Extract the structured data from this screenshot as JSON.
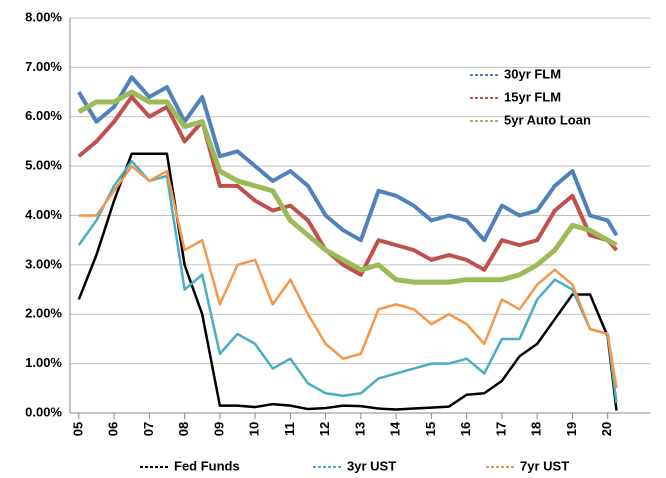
{
  "chart_data": {
    "type": "line",
    "x": [
      2005,
      2005.5,
      2006,
      2006.5,
      2007,
      2007.5,
      2008,
      2008.5,
      2009,
      2009.5,
      2010,
      2010.5,
      2011,
      2011.5,
      2012,
      2012.5,
      2013,
      2013.5,
      2014,
      2014.5,
      2015,
      2015.5,
      2016,
      2016.5,
      2017,
      2017.5,
      2018,
      2018.5,
      2019,
      2019.5,
      2020,
      2020.25
    ],
    "series": [
      {
        "name": "30yr FLM",
        "color": "#4f81bd",
        "values": [
          6.5,
          5.9,
          6.2,
          6.8,
          6.4,
          6.6,
          5.9,
          6.4,
          5.2,
          5.3,
          5.0,
          4.7,
          4.9,
          4.6,
          4.0,
          3.7,
          3.5,
          4.5,
          4.4,
          4.2,
          3.9,
          4.0,
          3.9,
          3.5,
          4.2,
          4.0,
          4.1,
          4.6,
          4.9,
          4.0,
          3.9,
          3.6
        ]
      },
      {
        "name": "15yr FLM",
        "color": "#c0504d",
        "values": [
          5.2,
          5.5,
          5.9,
          6.4,
          6.0,
          6.2,
          5.5,
          5.9,
          4.6,
          4.6,
          4.3,
          4.1,
          4.2,
          3.9,
          3.3,
          3.0,
          2.8,
          3.5,
          3.4,
          3.3,
          3.1,
          3.2,
          3.1,
          2.9,
          3.5,
          3.4,
          3.5,
          4.1,
          4.4,
          3.6,
          3.5,
          3.3
        ]
      },
      {
        "name": "5yr Auto Loan",
        "color": "#9bbb59",
        "values": [
          6.1,
          6.3,
          6.3,
          6.5,
          6.3,
          6.3,
          5.8,
          5.9,
          4.9,
          4.7,
          4.6,
          4.5,
          3.9,
          3.6,
          3.3,
          3.1,
          2.9,
          3.0,
          2.7,
          2.65,
          2.65,
          2.65,
          2.7,
          2.7,
          2.7,
          2.8,
          3.0,
          3.3,
          3.8,
          3.7,
          3.5,
          3.4
        ]
      },
      {
        "name": "Fed Funds",
        "color": "#000000",
        "values": [
          2.3,
          3.2,
          4.3,
          5.25,
          5.25,
          5.25,
          3.0,
          2.0,
          0.15,
          0.15,
          0.12,
          0.18,
          0.15,
          0.08,
          0.1,
          0.15,
          0.14,
          0.09,
          0.07,
          0.09,
          0.11,
          0.13,
          0.37,
          0.4,
          0.65,
          1.15,
          1.4,
          1.9,
          2.4,
          2.4,
          1.55,
          0.05
        ]
      },
      {
        "name": "3yr UST",
        "color": "#4bacc6",
        "values": [
          3.4,
          3.9,
          4.6,
          5.1,
          4.7,
          4.8,
          2.5,
          2.8,
          1.2,
          1.6,
          1.4,
          0.9,
          1.1,
          0.6,
          0.4,
          0.35,
          0.4,
          0.7,
          0.8,
          0.9,
          1.0,
          1.0,
          1.1,
          0.8,
          1.5,
          1.5,
          2.3,
          2.7,
          2.5,
          1.7,
          1.6,
          0.2
        ]
      },
      {
        "name": "7yr UST",
        "color": "#f79646",
        "values": [
          4.0,
          4.0,
          4.5,
          5.0,
          4.7,
          4.9,
          3.3,
          3.5,
          2.2,
          3.0,
          3.1,
          2.2,
          2.7,
          2.0,
          1.4,
          1.1,
          1.2,
          2.1,
          2.2,
          2.1,
          1.8,
          2.0,
          1.8,
          1.4,
          2.3,
          2.1,
          2.6,
          2.9,
          2.6,
          1.7,
          1.6,
          0.5
        ]
      }
    ],
    "xlim": [
      2004.75,
      2021.2
    ],
    "xticks": [
      {
        "value": 2005,
        "label": "05"
      },
      {
        "value": 2006,
        "label": "06"
      },
      {
        "value": 2007,
        "label": "07"
      },
      {
        "value": 2008,
        "label": "08"
      },
      {
        "value": 2009,
        "label": "09"
      },
      {
        "value": 2010,
        "label": "10"
      },
      {
        "value": 2011,
        "label": "11"
      },
      {
        "value": 2012,
        "label": "12"
      },
      {
        "value": 2013,
        "label": "13"
      },
      {
        "value": 2014,
        "label": "14"
      },
      {
        "value": 2015,
        "label": "15"
      },
      {
        "value": 2016,
        "label": "16"
      },
      {
        "value": 2017,
        "label": "17"
      },
      {
        "value": 2018,
        "label": "18"
      },
      {
        "value": 2019,
        "label": "19"
      },
      {
        "value": 2020,
        "label": "20"
      }
    ],
    "ylim": [
      0,
      8
    ],
    "yticks": [
      {
        "value": 0,
        "label": "0.00%"
      },
      {
        "value": 1,
        "label": "1.00%"
      },
      {
        "value": 2,
        "label": "2.00%"
      },
      {
        "value": 3,
        "label": "3.00%"
      },
      {
        "value": 4,
        "label": "4.00%"
      },
      {
        "value": 5,
        "label": "5.00%"
      },
      {
        "value": 6,
        "label": "6.00%"
      },
      {
        "value": 7,
        "label": "7.00%"
      },
      {
        "value": 8,
        "label": "8.00%"
      }
    ],
    "grid": true
  }
}
